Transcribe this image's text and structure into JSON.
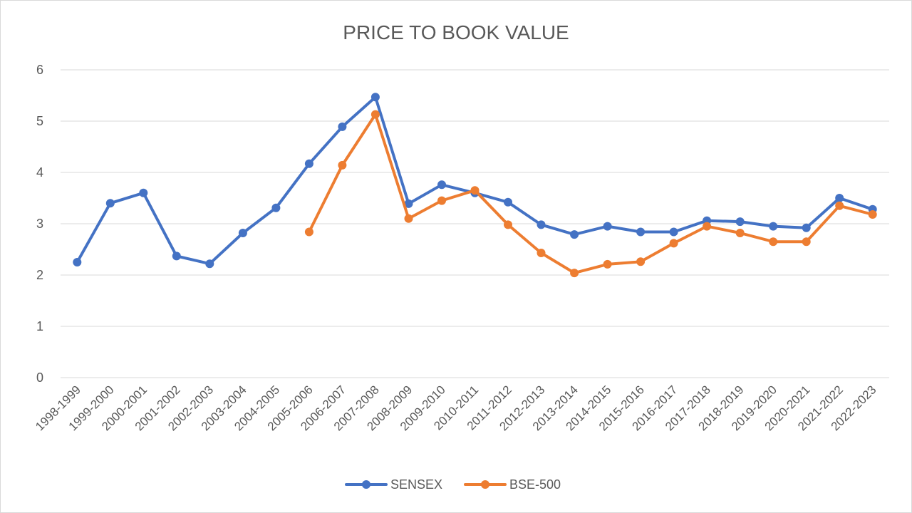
{
  "chart_data": {
    "type": "line",
    "title": "PRICE TO BOOK VALUE",
    "categories": [
      "1998-1999",
      "1999-2000",
      "2000-2001",
      "2001-2002",
      "2002-2003",
      "2003-2004",
      "2004-2005",
      "2005-2006",
      "2006-2007",
      "2007-2008",
      "2008-2009",
      "2009-2010",
      "2010-2011",
      "2011-2012",
      "2012-2013",
      "2013-2014",
      "2014-2015",
      "2015-2016",
      "2016-2017",
      "2017-2018",
      "2018-2019",
      "2019-2020",
      "2020-2021",
      "2021-2022",
      "2022-2023"
    ],
    "yticks": [
      "0",
      "1",
      "2",
      "3",
      "4",
      "5",
      "6"
    ],
    "ylim": [
      0,
      6
    ],
    "grid": true,
    "legend_position": "bottom",
    "series": [
      {
        "name": "SENSEX",
        "color": "#4472c4",
        "values": [
          2.25,
          3.4,
          3.6,
          2.37,
          2.22,
          2.82,
          3.31,
          4.17,
          4.89,
          5.47,
          3.39,
          3.76,
          3.6,
          3.42,
          2.98,
          2.79,
          2.95,
          2.84,
          2.84,
          3.06,
          3.04,
          2.95,
          2.92,
          3.5,
          3.28
        ]
      },
      {
        "name": "BSE-500",
        "color": "#ed7d31",
        "values": [
          null,
          null,
          null,
          null,
          null,
          null,
          null,
          2.84,
          4.14,
          5.13,
          3.1,
          3.45,
          3.65,
          2.98,
          2.43,
          2.04,
          2.21,
          2.26,
          2.62,
          2.95,
          2.82,
          2.65,
          2.65,
          3.35,
          3.18
        ]
      }
    ]
  }
}
